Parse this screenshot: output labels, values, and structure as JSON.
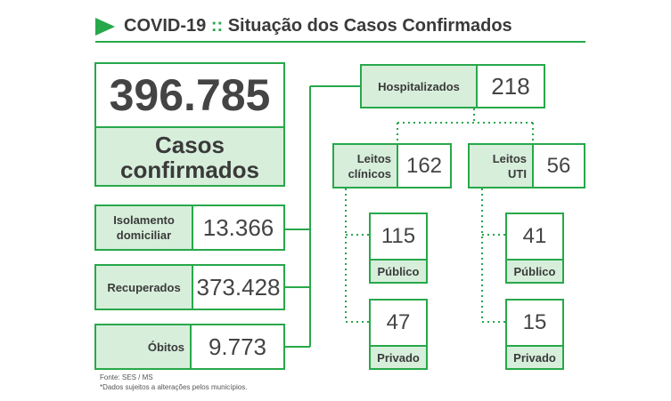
{
  "header": {
    "title_main": "COVID-19",
    "title_sep": "::",
    "title_rest": "Situação dos Casos Confirmados"
  },
  "totals": {
    "confirmed_value": "396.785",
    "confirmed_label_1": "Casos",
    "confirmed_label_2": "confirmados"
  },
  "categories": [
    {
      "label_1": "Isolamento",
      "label_2": "domiciliar",
      "value": "13.366"
    },
    {
      "label_1": "Recuperados",
      "label_2": "",
      "value": "373.428"
    },
    {
      "label_1": "Óbitos",
      "label_2": "",
      "value": "9.773"
    }
  ],
  "hospitalized": {
    "label": "Hospitalizados",
    "value": "218",
    "clinical": {
      "label_1": "Leitos",
      "label_2": "clínicos",
      "value": "162",
      "public": {
        "label": "Público",
        "value": "115"
      },
      "private": {
        "label": "Privado",
        "value": "47"
      }
    },
    "icu": {
      "label_1": "Leitos",
      "label_2": "UTI",
      "value": "56",
      "public": {
        "label": "Público",
        "value": "41"
      },
      "private": {
        "label": "Privado",
        "value": "15"
      }
    }
  },
  "footer": {
    "source": "Fonte: SES / MS",
    "note": "*Dados sujeitos a alterações pelos municípios."
  },
  "colors": {
    "accent": "#27a84a",
    "label_bg": "#d7eedb",
    "text": "#3a3a3a"
  }
}
